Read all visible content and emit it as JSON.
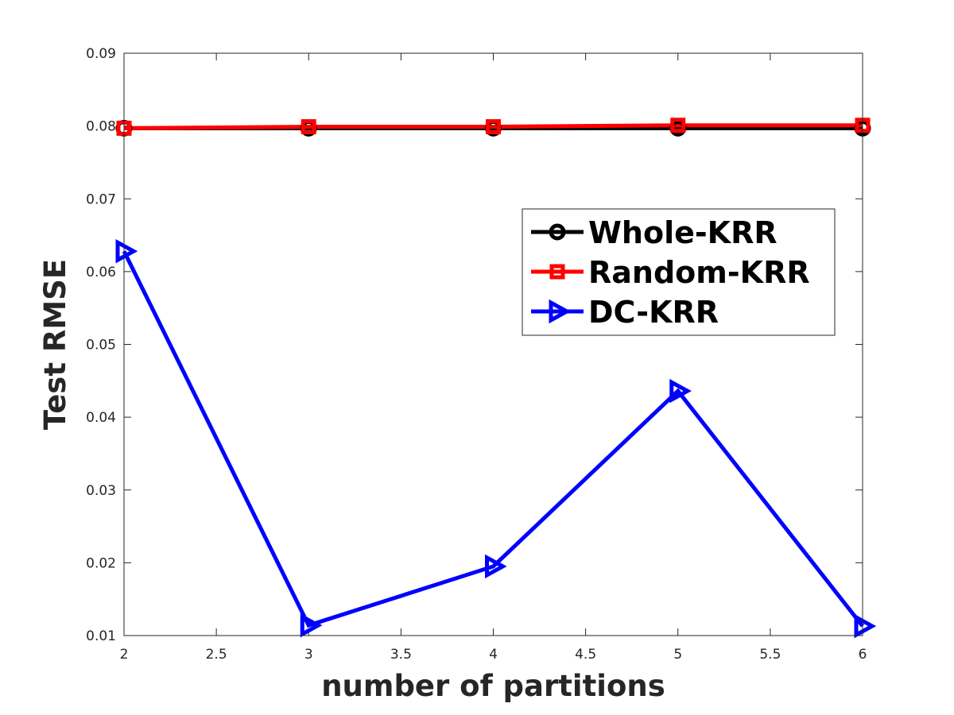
{
  "chart_data": {
    "type": "line",
    "title": "",
    "xlabel": "number of partitions",
    "ylabel": "Test RMSE",
    "xlim": [
      2,
      6
    ],
    "ylim": [
      0.01,
      0.09
    ],
    "xticks": [
      2,
      2.5,
      3,
      3.5,
      4,
      4.5,
      5,
      5.5,
      6
    ],
    "xtick_labels": [
      "2",
      "2.5",
      "3",
      "3.5",
      "4",
      "4.5",
      "5",
      "5.5",
      "6"
    ],
    "yticks": [
      0.01,
      0.02,
      0.03,
      0.04,
      0.05,
      0.06,
      0.07,
      0.08,
      0.09
    ],
    "ytick_labels": [
      "0.01",
      "0.02",
      "0.03",
      "0.04",
      "0.05",
      "0.06",
      "0.07",
      "0.08",
      "0.09"
    ],
    "grid": false,
    "legend_position": "right",
    "series": [
      {
        "name": "Whole-KRR",
        "color": "#000000",
        "marker": "circle",
        "x": [
          2,
          3,
          4,
          5,
          6
        ],
        "y": [
          0.0797,
          0.0797,
          0.0797,
          0.0797,
          0.0797
        ]
      },
      {
        "name": "Random-KRR",
        "color": "#ff0000",
        "marker": "square",
        "x": [
          2,
          3,
          4,
          5,
          6
        ],
        "y": [
          0.0797,
          0.0799,
          0.0799,
          0.0801,
          0.0801
        ]
      },
      {
        "name": "DC-KRR",
        "color": "#0000ff",
        "marker": "triangle-right",
        "x": [
          2,
          3,
          4,
          5,
          6
        ],
        "y": [
          0.0628,
          0.0114,
          0.0195,
          0.0436,
          0.0113
        ]
      }
    ]
  }
}
